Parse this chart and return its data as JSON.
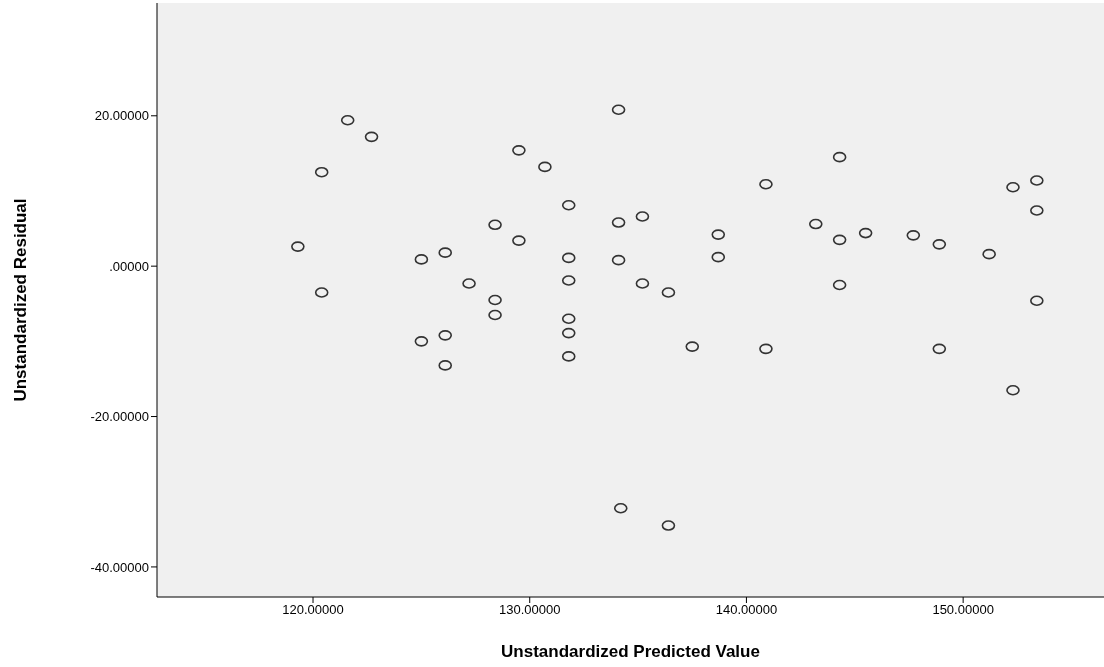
{
  "chart_data": {
    "type": "scatter",
    "xlabel": "Unstandardized Predicted Value",
    "ylabel": "Unstandardized Residual",
    "x": [
      119.3,
      120.4,
      120.4,
      121.6,
      122.7,
      125.0,
      125.0,
      126.1,
      126.1,
      126.1,
      127.2,
      128.4,
      128.4,
      128.4,
      129.5,
      129.5,
      130.7,
      131.8,
      131.8,
      131.8,
      131.8,
      131.8,
      131.8,
      134.1,
      134.1,
      134.1,
      135.2,
      135.2,
      136.4,
      137.5,
      138.7,
      138.7,
      140.9,
      140.9,
      143.2,
      144.3,
      144.3,
      144.3,
      145.5,
      147.7,
      148.9,
      148.9,
      151.2,
      152.3,
      152.3,
      153.4,
      153.4,
      153.4,
      134.2,
      136.4
    ],
    "values": [
      2.6,
      12.5,
      -3.5,
      19.4,
      17.2,
      0.9,
      -10.0,
      1.8,
      -9.2,
      -13.2,
      -2.3,
      5.5,
      -4.5,
      -6.5,
      15.4,
      3.4,
      13.2,
      8.1,
      1.1,
      -1.9,
      -7.0,
      -8.9,
      -12.0,
      20.8,
      5.8,
      0.8,
      6.6,
      -2.3,
      -3.5,
      -10.7,
      4.2,
      1.2,
      10.9,
      -11.0,
      5.6,
      14.5,
      3.5,
      -2.5,
      4.4,
      4.1,
      2.9,
      -11.0,
      1.6,
      10.5,
      -16.5,
      11.4,
      7.4,
      -4.6,
      -32.2,
      -34.5
    ],
    "color": "#333333",
    "marker": "circle",
    "xlim": [
      112.8,
      156.5
    ],
    "ylim": [
      -44,
      35
    ],
    "xticks": [
      {
        "value": 120,
        "label": "120.00000"
      },
      {
        "value": 130,
        "label": "130.00000"
      },
      {
        "value": 140,
        "label": "140.00000"
      },
      {
        "value": 150,
        "label": "150.00000"
      }
    ],
    "yticks": [
      {
        "value": -40,
        "label": "-40.00000"
      },
      {
        "value": -20,
        "label": "-20.00000"
      },
      {
        "value": 0,
        "label": ".00000"
      },
      {
        "value": 20,
        "label": "20.00000"
      }
    ],
    "grid": false,
    "legend": false
  }
}
